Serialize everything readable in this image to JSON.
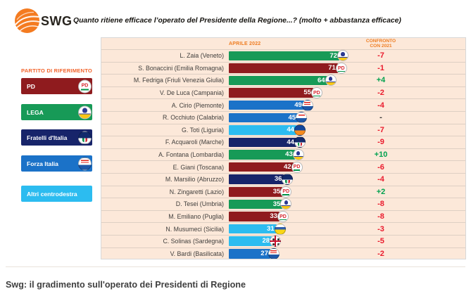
{
  "header": {
    "logo_text": "SWG",
    "title": "Quanto ritiene efficace l’operato del Presidente della Regione...? (molto + abbastanza efficace)"
  },
  "legend": {
    "title": "PARTITO DI RIFERIMENTO",
    "items": [
      {
        "label": "PD",
        "party": "pd",
        "logo": "pd"
      },
      {
        "label": "LEGA",
        "party": "lega",
        "logo": "lega"
      },
      {
        "label": "Fratelli d'Italia",
        "party": "fdi",
        "logo": "fdi"
      },
      {
        "label": "Forza Italia",
        "party": "fi",
        "logo": "fi"
      },
      {
        "label": "Altri centrodestra",
        "party": "altri",
        "logo": null
      }
    ]
  },
  "chart_data": {
    "type": "bar",
    "orientation": "horizontal",
    "title": "Quanto ritiene efficace l’operato del Presidente della Regione...? (molto + abbastanza efficace)",
    "value_header": "APRILE 2022",
    "compare_header": "CONFRONTO\nCON 2021",
    "xlim": [
      0,
      75
    ],
    "rows": [
      {
        "label": "L. Zaia (Veneto)",
        "value": 72,
        "party": "lega",
        "logo": "lega",
        "delta": "-7",
        "delta_dir": "down"
      },
      {
        "label": "S. Bonaccini (Emilia Romagna)",
        "value": 71,
        "party": "pd",
        "logo": "pd",
        "delta": "-1",
        "delta_dir": "down"
      },
      {
        "label": "M. Fedriga (Friuli Venezia Giulia)",
        "value": 64,
        "party": "lega",
        "logo": "lega",
        "delta": "+4",
        "delta_dir": "up"
      },
      {
        "label": "V. De Luca (Campania)",
        "value": 55,
        "party": "pd",
        "logo": "pd",
        "delta": "-2",
        "delta_dir": "down"
      },
      {
        "label": "A. Cirio (Piemonte)",
        "value": 49,
        "party": "fi",
        "logo": "fi",
        "delta": "-4",
        "delta_dir": "down"
      },
      {
        "label": "R. Occhiuto (Calabria)",
        "value": 45,
        "party": "fi",
        "logo": "fi",
        "delta": "-",
        "delta_dir": "neutral"
      },
      {
        "label": "G. Toti (Liguria)",
        "value": 44,
        "party": "altri",
        "logo": "cambiamo",
        "delta": "-7",
        "delta_dir": "down"
      },
      {
        "label": "F. Acquaroli (Marche)",
        "value": 44,
        "party": "fdi",
        "logo": "fdi",
        "delta": "-9",
        "delta_dir": "down"
      },
      {
        "label": "A. Fontana (Lombardia)",
        "value": 43,
        "party": "lega",
        "logo": "lega",
        "delta": "+10",
        "delta_dir": "up"
      },
      {
        "label": "E. Giani (Toscana)",
        "value": 42,
        "party": "pd",
        "logo": "pd",
        "delta": "-6",
        "delta_dir": "down"
      },
      {
        "label": "M. Marsilio (Abruzzo)",
        "value": 36,
        "party": "fdi",
        "logo": "fdi",
        "delta": "-4",
        "delta_dir": "down"
      },
      {
        "label": "N. Zingaretti (Lazio)",
        "value": 35,
        "party": "pd",
        "logo": "pd",
        "delta": "+2",
        "delta_dir": "up"
      },
      {
        "label": "D. Tesei (Umbria)",
        "value": 35,
        "party": "lega",
        "logo": "lega",
        "delta": "-8",
        "delta_dir": "down"
      },
      {
        "label": "M. Emiliano (Puglia)",
        "value": 33,
        "party": "pd",
        "logo": "pd",
        "delta": "-8",
        "delta_dir": "down"
      },
      {
        "label": "N. Musumeci (Sicilia)",
        "value": 31,
        "party": "altri",
        "logo": "db",
        "delta": "-3",
        "delta_dir": "down"
      },
      {
        "label": "C. Solinas (Sardegna)",
        "value": 28,
        "party": "altri",
        "logo": "psdaz",
        "delta": "-5",
        "delta_dir": "down"
      },
      {
        "label": "V. Bardi (Basilicata)",
        "value": 27,
        "party": "fi",
        "logo": "fi",
        "delta": "-2",
        "delta_dir": "down"
      }
    ]
  },
  "colors": {
    "pd": "#8f1b1e",
    "lega": "#179a57",
    "fdi": "#17246a",
    "fi": "#1b72c8",
    "altri": "#2cbcf0",
    "delta_down": "#ea1b2d",
    "delta_up": "#00a14e",
    "delta_neutral": "#333333",
    "header_orange": "#ee7d22",
    "legend_title": "#f2642c",
    "table_bg": "#fce8d9",
    "logo_orange": "#f47b20"
  },
  "caption": "Swg: il gradimento sull'operato dei Presidenti di Regione"
}
